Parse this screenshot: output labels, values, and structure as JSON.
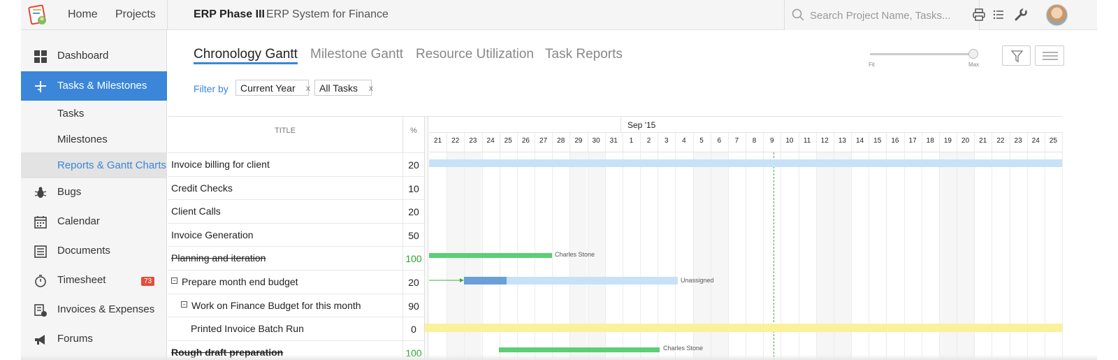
{
  "topbar": {
    "home": "Home",
    "projects": "Projects",
    "project_name": "ERP Phase III",
    "project_desc": "ERP System for Finance",
    "search_placeholder": "Search Project Name, Tasks..."
  },
  "sidebar": {
    "items": [
      {
        "label": "Dashboard",
        "icon": "dashboard-icon"
      },
      {
        "label": "Tasks & Milestones",
        "icon": "tasks-icon",
        "active": true
      },
      {
        "label": "Tasks"
      },
      {
        "label": "Milestones"
      },
      {
        "label": "Reports & Gantt Charts",
        "active": true
      },
      {
        "label": "Bugs",
        "icon": "bug-icon"
      },
      {
        "label": "Calendar",
        "icon": "calendar-icon"
      },
      {
        "label": "Documents",
        "icon": "documents-icon"
      },
      {
        "label": "Timesheet",
        "icon": "timer-icon",
        "badge": "73"
      },
      {
        "label": "Invoices & Expenses",
        "icon": "invoice-icon"
      },
      {
        "label": "Forums",
        "icon": "megaphone-icon"
      }
    ]
  },
  "tabs": [
    "Chronology Gantt",
    "Milestone Gantt",
    "Resource Utilization",
    "Task Reports"
  ],
  "zoom": {
    "min_label": "Fit",
    "max_label": "Max",
    "level": 1.0
  },
  "filter": {
    "label": "Filter by",
    "chips": [
      "Current Year",
      "All Tasks"
    ]
  },
  "gantt": {
    "title_header": "TITLE",
    "pct_header": "%",
    "month_label": "Sep '15",
    "days": [
      "21",
      "22",
      "23",
      "24",
      "25",
      "26",
      "27",
      "28",
      "29",
      "30",
      "31",
      "1",
      "2",
      "3",
      "4",
      "5",
      "6",
      "7",
      "8",
      "9",
      "10",
      "11",
      "12",
      "13",
      "14",
      "15",
      "16",
      "17",
      "18",
      "19",
      "20",
      "21",
      "22",
      "23",
      "24",
      "25"
    ],
    "rows": [
      {
        "title": "Invoice billing for client",
        "pct": "20"
      },
      {
        "title": "Credit Checks",
        "pct": "10"
      },
      {
        "title": "Client Calls",
        "pct": "20"
      },
      {
        "title": "Invoice Generation",
        "pct": "50"
      },
      {
        "title": "Planning and iteration",
        "pct": "100"
      },
      {
        "title": "Prepare month end budget",
        "pct": "20"
      },
      {
        "title": "Work on Finance Budget for this month",
        "pct": "90"
      },
      {
        "title": "Printed Invoice Batch Run",
        "pct": "0"
      },
      {
        "title": "Rough draft preparation",
        "pct": "100"
      }
    ],
    "bar_labels": {
      "planning": "Charles Stone",
      "budget": "Unassigned",
      "rough": "Charles Stone"
    },
    "colors": {
      "accent": "#3b86d8",
      "bar_light_blue": "#c7e2f8",
      "bar_blue": "#6a9fd8",
      "bar_green": "#5cce74",
      "bar_yellow": "#fbf19a",
      "today": "#3cae3c"
    }
  }
}
